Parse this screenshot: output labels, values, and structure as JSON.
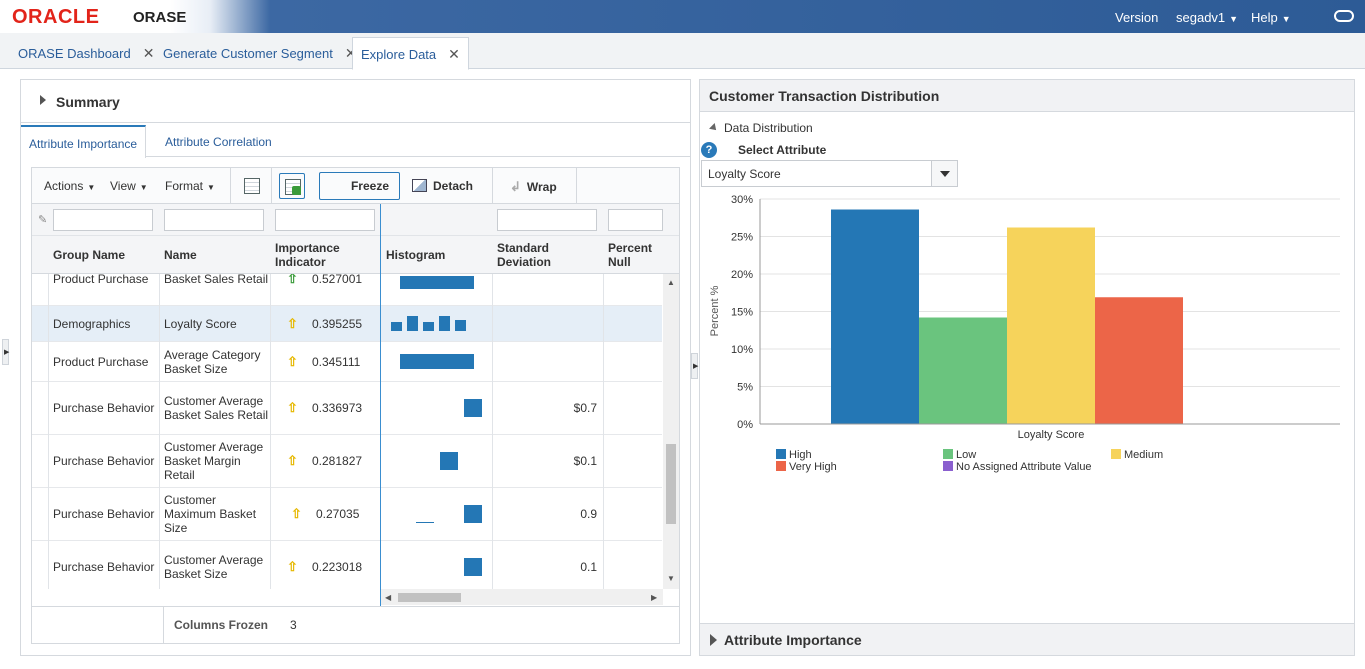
{
  "brand": {
    "logo": "ORACLE",
    "app_name": "ORASE"
  },
  "top_nav": {
    "version": "Version",
    "user": "segadv1",
    "help": "Help"
  },
  "doc_tabs": [
    {
      "label": "ORASE Dashboard"
    },
    {
      "label": "Generate Customer Segment"
    },
    {
      "label": "Explore Data"
    }
  ],
  "left": {
    "summary_title": "Summary",
    "subtabs": [
      "Attribute Importance",
      "Attribute Correlation"
    ],
    "toolbar": {
      "actions": "Actions",
      "view": "View",
      "format": "Format",
      "freeze": "Freeze",
      "detach": "Detach",
      "wrap": "Wrap"
    },
    "columns": [
      "Group Name",
      "Name",
      "Importance Indicator",
      "Histogram",
      "Standard Deviation",
      "Percent Null"
    ],
    "rows": [
      {
        "group": "Product Purchase",
        "name": "Basket Sales Retail",
        "indicator_icon": "arrow-up-green",
        "importance": "0.527001",
        "std_dev": "",
        "pct_null": ""
      },
      {
        "group": "Demographics",
        "name": "Loyalty Score",
        "indicator_icon": "arrow-up-yellow",
        "importance": "0.395255",
        "std_dev": "",
        "pct_null": ""
      },
      {
        "group": "Product Purchase",
        "name": "Average Category Basket Size",
        "indicator_icon": "arrow-up-yellow",
        "importance": "0.345111",
        "std_dev": "",
        "pct_null": ""
      },
      {
        "group": "Purchase Behavior",
        "name": "Customer Average Basket Sales Retail",
        "indicator_icon": "arrow-up-yellow",
        "importance": "0.336973",
        "std_dev": "$0.7",
        "pct_null": ""
      },
      {
        "group": "Purchase Behavior",
        "name": "Customer Average Basket Margin Retail",
        "indicator_icon": "arrow-up-yellow",
        "importance": "0.281827",
        "std_dev": "$0.1",
        "pct_null": ""
      },
      {
        "group": "Purchase Behavior",
        "name": "Customer Maximum Basket Size",
        "indicator_icon": "arrow-up-yellow",
        "importance": "0.27035",
        "std_dev": "0.9",
        "pct_null": ""
      },
      {
        "group": "Purchase Behavior",
        "name": "Customer Average Basket Size",
        "indicator_icon": "arrow-up-yellow",
        "importance": "0.223018",
        "std_dev": "0.1",
        "pct_null": ""
      }
    ],
    "footer": {
      "frozen_label": "Columns Frozen",
      "frozen_count": "3"
    }
  },
  "right": {
    "title": "Customer Transaction Distribution",
    "section": "Data Distribution",
    "select_label": "Select Attribute",
    "selected_attribute": "Loyalty Score",
    "bottom_section": "Attribute Importance"
  },
  "colors": {
    "accent": "#2a7ab9",
    "high": "#2477b5",
    "low": "#6ac47e",
    "medium": "#f6d35b",
    "very_high": "#ec6548",
    "no_value": "#8a5fcf"
  },
  "chart_data": {
    "type": "bar",
    "ylabel": "Percent %",
    "xlabel": "Loyalty Score",
    "ylim": [
      0,
      30
    ],
    "y_ticks": [
      "0%",
      "5%",
      "10%",
      "15%",
      "20%",
      "25%",
      "30%"
    ],
    "categories": [
      "Loyalty Score"
    ],
    "series": [
      {
        "name": "High",
        "values": [
          28.6
        ],
        "color": "#2477b5"
      },
      {
        "name": "Low",
        "values": [
          14.2
        ],
        "color": "#6ac47e"
      },
      {
        "name": "Medium",
        "values": [
          26.2
        ],
        "color": "#f6d35b"
      },
      {
        "name": "Very High",
        "values": [
          16.9
        ],
        "color": "#ec6548"
      },
      {
        "name": "No Assigned Attribute Value",
        "values": [
          0
        ],
        "color": "#8a5fcf"
      }
    ],
    "grid": true,
    "legend": "bottom"
  }
}
